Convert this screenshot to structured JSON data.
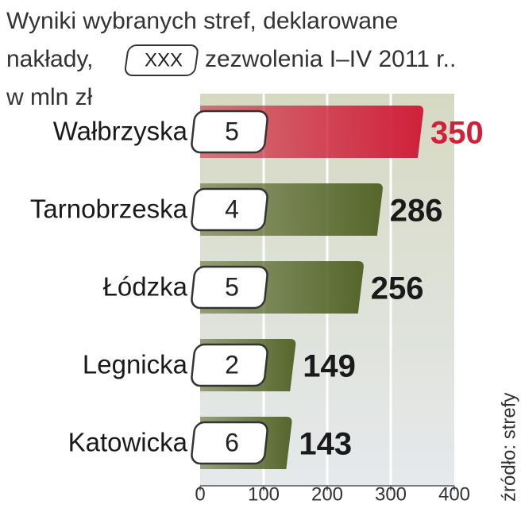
{
  "chart_data": {
    "type": "bar",
    "title_line1": "Wyniki wybranych stref, deklarowane",
    "title_line2": "nakłady,",
    "legend_box_label": "XXX",
    "legend_box_text": "zezwolenia I–IV 2011 r..",
    "unit": "w mln zł",
    "source": "źródło: strefy",
    "categories": [
      "Wałbrzyska",
      "Tarnobrzeska",
      "Łódzka",
      "Legnicka",
      "Katowicka"
    ],
    "values": [
      350,
      286,
      256,
      149,
      143
    ],
    "permits": [
      5,
      4,
      5,
      2,
      6
    ],
    "colors": [
      "#d0203a",
      "#56662a",
      "#56662a",
      "#56662a",
      "#56662a"
    ],
    "label_colors": [
      "#d0203a",
      "#1a1a1a",
      "#1a1a1a",
      "#1a1a1a",
      "#1a1a1a"
    ],
    "xlim": [
      0,
      400
    ],
    "xticks": [
      0,
      100,
      200,
      300,
      400
    ],
    "grid": true
  }
}
